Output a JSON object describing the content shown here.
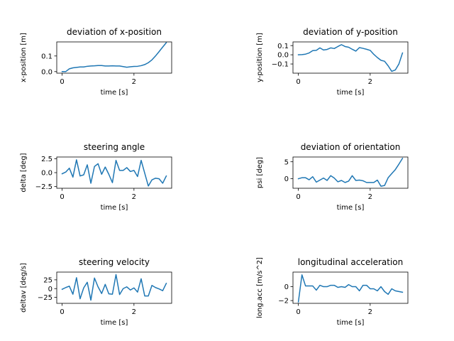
{
  "chart_data": [
    {
      "type": "line",
      "title": "deviation of x-position",
      "xlabel": "time [s]",
      "ylabel": "x-position [m]",
      "xlim": [
        -0.15,
        3.05
      ],
      "ylim": [
        -0.01,
        0.19
      ],
      "xticks": [
        0,
        2
      ],
      "yticks": [
        0.0,
        0.1
      ],
      "ytick_labels": [
        "0.0",
        "0.1"
      ],
      "color": "#1f77b4",
      "x": [
        0,
        0.1,
        0.2,
        0.3,
        0.4,
        0.5,
        0.6,
        0.7,
        0.8,
        0.9,
        1.0,
        1.1,
        1.2,
        1.3,
        1.4,
        1.5,
        1.6,
        1.7,
        1.8,
        1.9,
        2.0,
        2.1,
        2.2,
        2.3,
        2.4,
        2.5,
        2.6,
        2.7,
        2.8,
        2.9
      ],
      "y": [
        0.0,
        0.0,
        0.018,
        0.024,
        0.027,
        0.03,
        0.03,
        0.034,
        0.036,
        0.037,
        0.039,
        0.039,
        0.036,
        0.036,
        0.037,
        0.036,
        0.036,
        0.032,
        0.028,
        0.031,
        0.033,
        0.034,
        0.038,
        0.045,
        0.057,
        0.075,
        0.1,
        0.128,
        0.157,
        0.185
      ]
    },
    {
      "type": "line",
      "title": "deviation of y-position",
      "xlabel": "time [s]",
      "ylabel": "y-position [m]",
      "xlim": [
        -0.15,
        3.05
      ],
      "ylim": [
        -0.2,
        0.14
      ],
      "xticks": [
        0,
        2
      ],
      "yticks": [
        0.1,
        0.0,
        -0.1
      ],
      "ytick_labels": [
        "0.1",
        "0.0",
        "−0.1"
      ],
      "color": "#1f77b4",
      "x": [
        0,
        0.1,
        0.2,
        0.3,
        0.4,
        0.5,
        0.6,
        0.7,
        0.8,
        0.9,
        1.0,
        1.1,
        1.2,
        1.3,
        1.4,
        1.5,
        1.6,
        1.7,
        1.8,
        1.9,
        2.0,
        2.1,
        2.2,
        2.3,
        2.4,
        2.5,
        2.6,
        2.7,
        2.8,
        2.9
      ],
      "y": [
        0.0,
        0.002,
        0.007,
        0.02,
        0.045,
        0.048,
        0.075,
        0.052,
        0.058,
        0.075,
        0.068,
        0.09,
        0.11,
        0.09,
        0.082,
        0.06,
        0.04,
        0.078,
        0.07,
        0.06,
        0.048,
        0.005,
        -0.03,
        -0.06,
        -0.07,
        -0.12,
        -0.18,
        -0.165,
        -0.1,
        0.02
      ]
    },
    {
      "type": "line",
      "title": "steering angle",
      "xlabel": "time [s]",
      "ylabel": "delta [deg]",
      "xlim": [
        -0.15,
        3.05
      ],
      "ylim": [
        -2.8,
        2.8
      ],
      "xticks": [
        0,
        2
      ],
      "yticks": [
        2.5,
        0.0,
        -2.5
      ],
      "ytick_labels": [
        "2.5",
        "0.0",
        "−2.5"
      ],
      "color": "#1f77b4",
      "x": [
        0,
        0.1,
        0.2,
        0.3,
        0.4,
        0.5,
        0.6,
        0.7,
        0.8,
        0.9,
        1.0,
        1.1,
        1.2,
        1.3,
        1.4,
        1.5,
        1.6,
        1.7,
        1.8,
        1.9,
        2.0,
        2.1,
        2.2,
        2.3,
        2.4,
        2.5,
        2.6,
        2.7,
        2.8,
        2.9
      ],
      "y": [
        -0.2,
        0.1,
        0.8,
        -0.8,
        2.3,
        -0.6,
        -0.4,
        1.4,
        -1.9,
        1.1,
        1.6,
        -0.3,
        1.0,
        -0.3,
        -1.8,
        2.2,
        0.4,
        0.4,
        0.9,
        0.2,
        0.4,
        -0.7,
        2.2,
        -0.1,
        -2.4,
        -1.3,
        -1.0,
        -1.1,
        -1.9,
        -0.6
      ]
    },
    {
      "type": "line",
      "title": "deviation of orientation",
      "xlabel": "time [s]",
      "ylabel": "psi [deg]",
      "xlim": [
        -0.15,
        3.05
      ],
      "ylim": [
        -2.8,
        6.4
      ],
      "xticks": [
        0,
        2
      ],
      "yticks": [
        5,
        0
      ],
      "ytick_labels": [
        "5",
        "0"
      ],
      "color": "#1f77b4",
      "x": [
        0,
        0.1,
        0.2,
        0.3,
        0.4,
        0.5,
        0.6,
        0.7,
        0.8,
        0.9,
        1.0,
        1.1,
        1.2,
        1.3,
        1.4,
        1.5,
        1.6,
        1.7,
        1.8,
        1.9,
        2.0,
        2.1,
        2.2,
        2.3,
        2.4,
        2.5,
        2.6,
        2.7,
        2.8,
        2.9
      ],
      "y": [
        0.0,
        0.3,
        0.3,
        -0.3,
        0.6,
        -1.0,
        -0.4,
        0.2,
        -0.5,
        0.9,
        0.2,
        -0.9,
        -0.5,
        -1.1,
        -0.7,
        0.9,
        -0.5,
        -0.4,
        -0.6,
        -1.1,
        -1.1,
        -1.1,
        -0.4,
        -2.2,
        -2.0,
        0.3,
        1.5,
        2.7,
        4.3,
        6.0
      ]
    },
    {
      "type": "line",
      "title": "steering velocity",
      "xlabel": "time [s]",
      "ylabel": "deltav [deg/s]",
      "xlim": [
        -0.15,
        3.05
      ],
      "ylim": [
        -42,
        47
      ],
      "xticks": [
        0,
        2
      ],
      "yticks": [
        25,
        0,
        -25
      ],
      "ytick_labels": [
        "25",
        "0",
        "−25"
      ],
      "color": "#1f77b4",
      "x": [
        0,
        0.1,
        0.2,
        0.3,
        0.4,
        0.5,
        0.6,
        0.7,
        0.8,
        0.9,
        1.0,
        1.1,
        1.2,
        1.3,
        1.4,
        1.5,
        1.6,
        1.7,
        1.8,
        1.9,
        2.0,
        2.1,
        2.2,
        2.3,
        2.4,
        2.5,
        2.6,
        2.7,
        2.8,
        2.9
      ],
      "y": [
        -2,
        3,
        7,
        -16,
        31,
        -29,
        2,
        18,
        -33,
        30,
        5,
        -14,
        12,
        -15,
        -16,
        40,
        -17,
        0,
        5,
        -4,
        2,
        -10,
        28,
        -21,
        -21,
        9,
        3,
        -1,
        -6,
        15
      ]
    },
    {
      "type": "line",
      "title": "longitudinal acceleration",
      "xlabel": "time [s]",
      "ylabel": "long.acc [m/s^2]",
      "xlim": [
        -0.15,
        3.05
      ],
      "ylim": [
        -2.4,
        2.1
      ],
      "xticks": [
        0,
        2
      ],
      "yticks": [
        0,
        -2
      ],
      "ytick_labels": [
        "0",
        "−2"
      ],
      "color": "#1f77b4",
      "x": [
        0,
        0.1,
        0.2,
        0.3,
        0.4,
        0.5,
        0.6,
        0.7,
        0.8,
        0.9,
        1.0,
        1.1,
        1.2,
        1.3,
        1.4,
        1.5,
        1.6,
        1.7,
        1.8,
        1.9,
        2.0,
        2.1,
        2.2,
        2.3,
        2.4,
        2.5,
        2.6,
        2.7,
        2.8,
        2.9
      ],
      "y": [
        -2.2,
        1.7,
        0.1,
        0.1,
        0.1,
        -0.5,
        0.2,
        0.0,
        0.0,
        0.2,
        0.2,
        -0.1,
        0.0,
        -0.1,
        0.3,
        0.0,
        0.0,
        -0.6,
        0.2,
        0.2,
        -0.3,
        -0.3,
        -0.6,
        0.0,
        -0.7,
        -1.1,
        -0.3,
        -0.6,
        -0.7,
        -0.8
      ]
    }
  ]
}
